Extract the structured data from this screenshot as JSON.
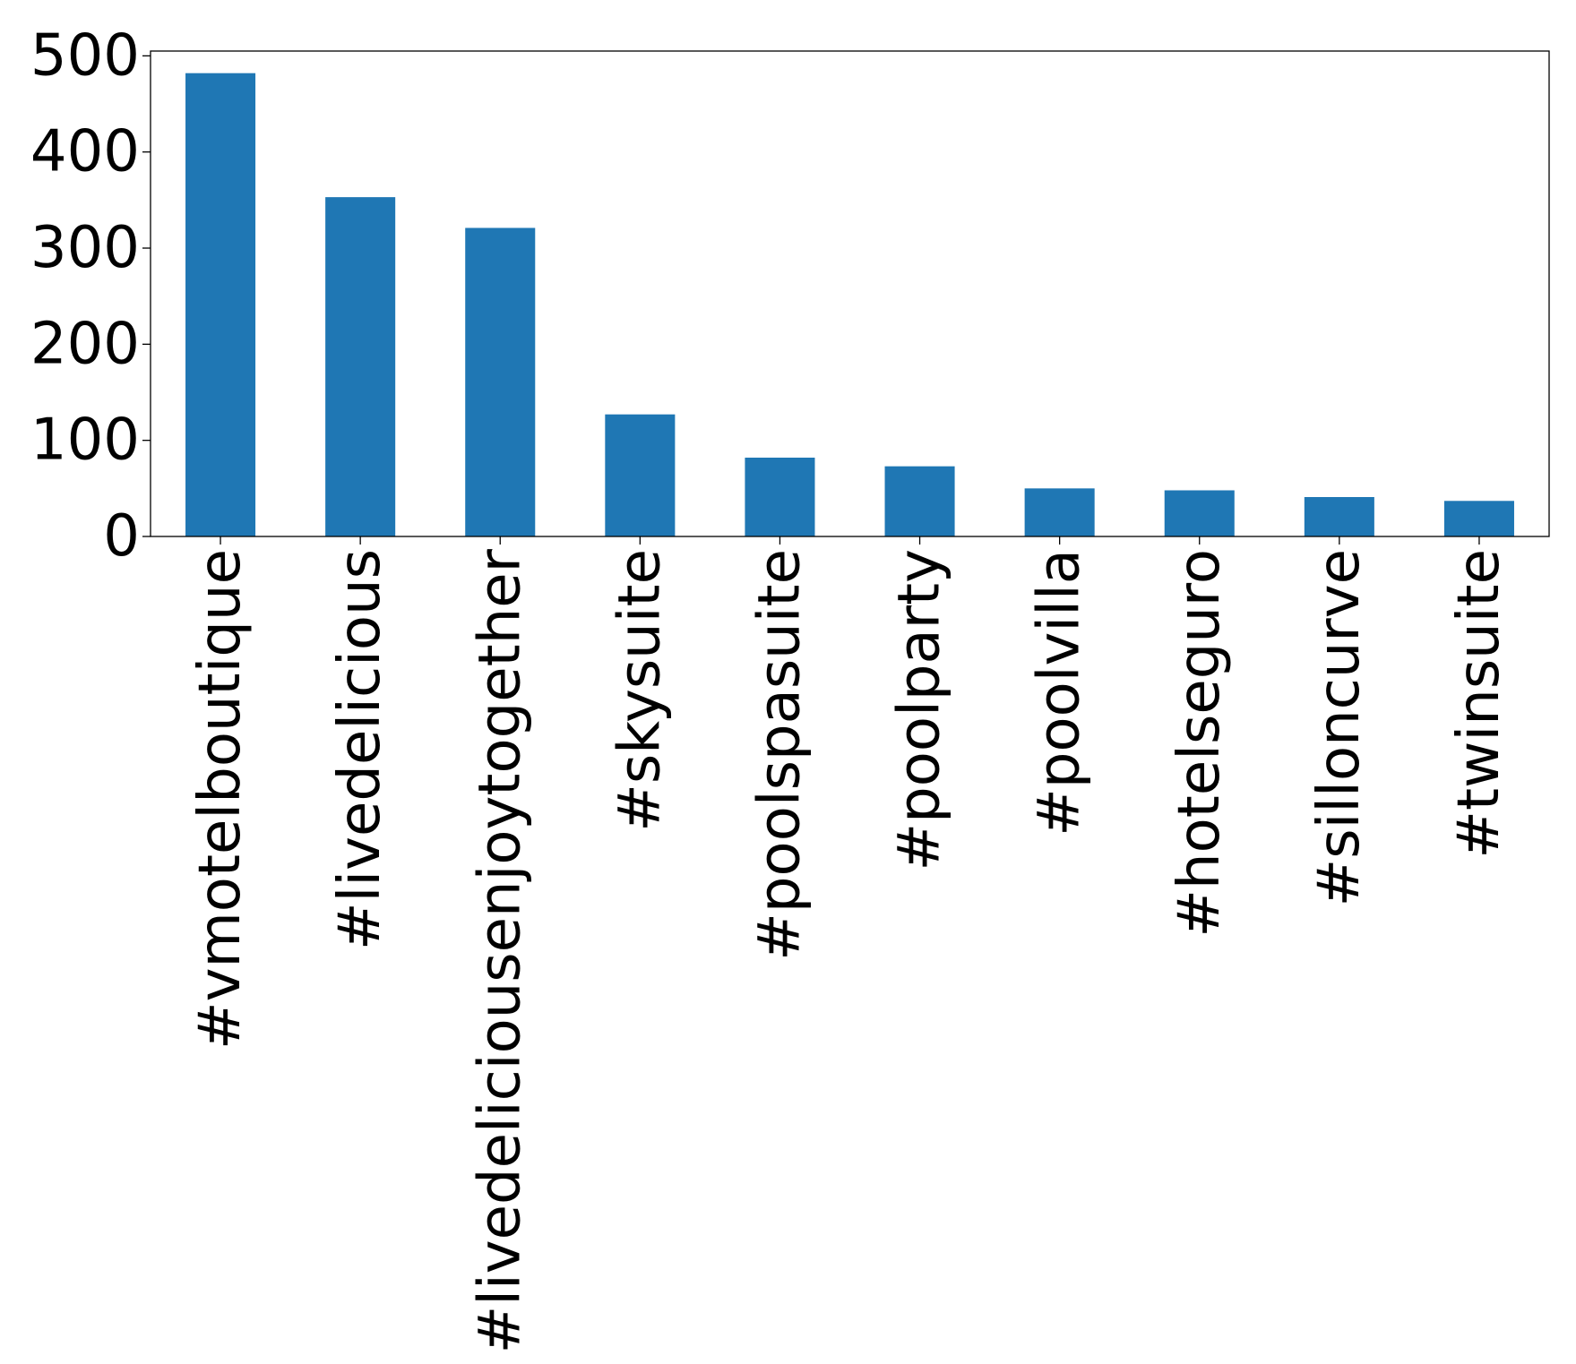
{
  "chart_data": {
    "type": "bar",
    "title": "",
    "xlabel": "",
    "ylabel": "",
    "categories": [
      "#vmotelboutique",
      "#livedelicious",
      "#livedeliciousenjoytogether",
      "#skysuite",
      "#poolspasuite",
      "#poolparty",
      "#poolvilla",
      "#hotelseguro",
      "#silloncurve",
      "#twinsuite"
    ],
    "values": [
      482,
      353,
      321,
      127,
      82,
      73,
      50,
      48,
      41,
      37
    ],
    "ylim": [
      0,
      505
    ],
    "yticks": [
      0,
      100,
      200,
      300,
      400,
      500
    ],
    "ytick_labels": [
      "0",
      "100",
      "200",
      "300",
      "400",
      "500"
    ],
    "bar_color": "#1f77b4",
    "grid": false,
    "legend": "none"
  }
}
